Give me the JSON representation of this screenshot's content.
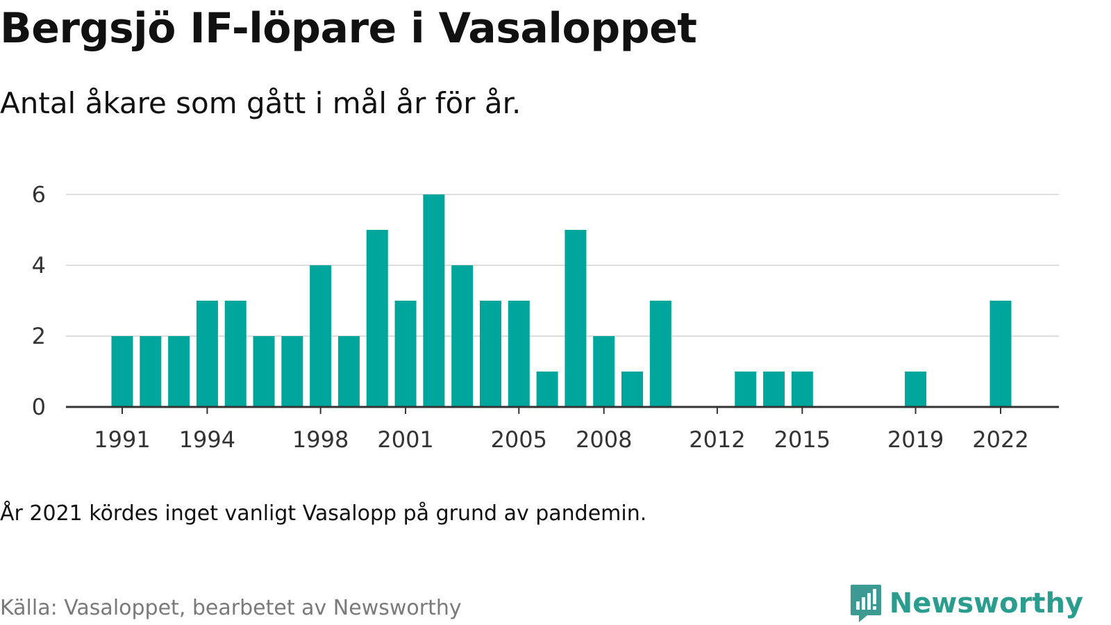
{
  "title": "Bergsjö IF-löpare i Vasaloppet",
  "subtitle": "Antal åkare som gått i mål år för år.",
  "note": "År 2021 kördes inget vanligt Vasalopp på grund av pandemin.",
  "source": "Källa: Vasaloppet, bearbetet av Newsworthy",
  "brand": {
    "name": "Newsworthy",
    "icon": "newsworthy-logo-icon"
  },
  "colors": {
    "bar": "#00a69c",
    "grid": "#dddddd",
    "axis": "#333333",
    "brand": "#2a9d8f"
  },
  "chart_data": {
    "type": "bar",
    "title": "Bergsjö IF-löpare i Vasaloppet",
    "subtitle": "Antal åkare som gått i mål år för år.",
    "xlabel": "",
    "ylabel": "",
    "x": [
      1991,
      1992,
      1993,
      1994,
      1995,
      1996,
      1997,
      1998,
      1999,
      2000,
      2001,
      2002,
      2003,
      2004,
      2005,
      2006,
      2007,
      2008,
      2009,
      2010,
      2011,
      2012,
      2013,
      2014,
      2015,
      2016,
      2017,
      2018,
      2019,
      2020,
      2021,
      2022
    ],
    "values": [
      2,
      2,
      2,
      3,
      3,
      2,
      2,
      4,
      2,
      5,
      3,
      6,
      4,
      3,
      3,
      1,
      5,
      2,
      1,
      3,
      0,
      0,
      1,
      1,
      1,
      0,
      0,
      0,
      1,
      0,
      0,
      3
    ],
    "xticks": [
      "1991",
      "1994",
      "1998",
      "2001",
      "2005",
      "2008",
      "2012",
      "2015",
      "2019",
      "2022"
    ],
    "yticks": [
      "0",
      "2",
      "4",
      "6"
    ],
    "ylim": [
      0,
      6
    ],
    "grid": true,
    "legend": "none"
  }
}
